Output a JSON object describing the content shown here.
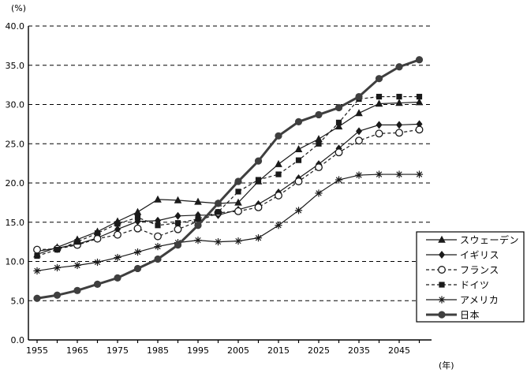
{
  "labels": {
    "y_axis_unit": "(%)",
    "x_axis_unit": "(年)"
  },
  "chart_data": {
    "type": "line",
    "title": "",
    "xlabel": "(年)",
    "ylabel": "(%)",
    "ylim": [
      0,
      40
    ],
    "grid": "horizontal-dashed",
    "legend_position": "right-bottom-box",
    "x": [
      1955,
      1960,
      1965,
      1970,
      1975,
      1980,
      1985,
      1990,
      1995,
      2000,
      2005,
      2010,
      2015,
      2020,
      2025,
      2030,
      2035,
      2040,
      2045,
      2050
    ],
    "x_tick_labels": [
      "1955",
      "1965",
      "1975",
      "1985",
      "1995",
      "2005",
      "2015",
      "2025",
      "2035",
      "2045"
    ],
    "y_ticks": [
      "0.0",
      "5.0",
      "10.0",
      "15.0",
      "20.0",
      "25.0",
      "30.0",
      "35.0",
      "40.0"
    ],
    "series": [
      {
        "key": "sweden",
        "name": "スウェーデン",
        "marker": "triangle",
        "line": "solid",
        "color": "#1a1a1a",
        "values": [
          10.9,
          11.8,
          12.8,
          13.8,
          15.1,
          16.3,
          17.9,
          17.8,
          17.6,
          17.4,
          17.5,
          20.2,
          22.4,
          24.3,
          25.6,
          27.2,
          28.9,
          30.1,
          30.2,
          30.3
        ]
      },
      {
        "key": "uk",
        "name": "イギリス",
        "marker": "diamond",
        "line": "solid",
        "color": "#1a1a1a",
        "values": [
          11.3,
          11.7,
          12.2,
          13.0,
          14.1,
          15.1,
          15.2,
          15.8,
          15.9,
          15.9,
          16.6,
          17.3,
          18.8,
          20.6,
          22.4,
          24.4,
          26.6,
          27.4,
          27.4,
          27.5
        ]
      },
      {
        "key": "france",
        "name": "フランス",
        "marker": "open-circle",
        "line": "dashed",
        "color": "#1a1a1a",
        "values": [
          11.5,
          11.6,
          12.1,
          12.9,
          13.4,
          14.2,
          13.2,
          14.1,
          15.1,
          16.2,
          16.4,
          16.9,
          18.4,
          20.2,
          22.0,
          23.9,
          25.4,
          26.3,
          26.4,
          26.8
        ]
      },
      {
        "key": "germany",
        "name": "ドイツ",
        "marker": "square",
        "line": "dashed",
        "color": "#1a1a1a",
        "values": [
          10.7,
          11.5,
          12.5,
          13.6,
          14.8,
          15.6,
          14.6,
          14.9,
          15.4,
          16.3,
          18.9,
          20.4,
          21.1,
          22.9,
          25.0,
          27.7,
          30.7,
          31.0,
          31.0,
          31.0
        ]
      },
      {
        "key": "usa",
        "name": "アメリカ",
        "marker": "asterisk",
        "line": "solid",
        "color": "#1a1a1a",
        "values": [
          8.8,
          9.2,
          9.5,
          9.9,
          10.5,
          11.2,
          11.9,
          12.4,
          12.7,
          12.5,
          12.6,
          13.0,
          14.6,
          16.5,
          18.7,
          20.4,
          21.0,
          21.1,
          21.1,
          21.1
        ]
      },
      {
        "key": "japan",
        "name": "日本",
        "marker": "filled-circle",
        "line": "solid-thick",
        "color": "#3f3f3f",
        "values": [
          5.3,
          5.7,
          6.3,
          7.1,
          7.9,
          9.1,
          10.3,
          12.1,
          14.6,
          17.4,
          20.2,
          22.8,
          26.0,
          27.8,
          28.7,
          29.6,
          31.0,
          33.3,
          34.8,
          35.7
        ]
      }
    ]
  }
}
